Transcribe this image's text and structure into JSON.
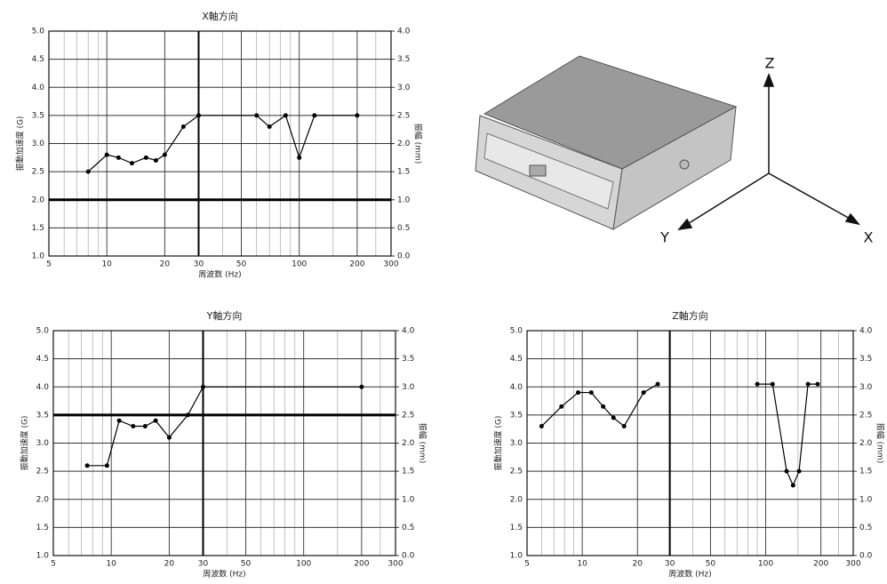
{
  "chart_data": [
    {
      "type": "line",
      "title": "X軸方向",
      "xlabel": "周波数 (Hz)",
      "ylabel": "振動加速度 (G)",
      "y2label": "振幅 (mm)",
      "xscale": "log",
      "xlim": [
        5,
        300
      ],
      "xticks": [
        5,
        10,
        20,
        30,
        50,
        100,
        200,
        300
      ],
      "xminor": [
        6,
        7,
        8,
        9,
        40,
        60,
        70,
        80,
        90,
        150,
        250
      ],
      "ylim": [
        1,
        5
      ],
      "yticks": [
        {
          "value": 1,
          "label": "1.0"
        },
        1.5,
        {
          "value": 2,
          "label": "2.0"
        },
        2.5,
        {
          "value": 3,
          "label": "3.0"
        },
        3.5,
        {
          "value": 4,
          "label": "4.0"
        },
        4.5,
        {
          "value": 5,
          "label": "5.0"
        }
      ],
      "y2lim": [
        0,
        4
      ],
      "y2ticks": [
        {
          "value": 0,
          "label": "0.0"
        },
        0.5,
        {
          "value": 1,
          "label": "1.0"
        },
        1.5,
        {
          "value": 2,
          "label": "2.0"
        },
        2.5,
        {
          "value": 3,
          "label": "3.0"
        },
        3.5,
        {
          "value": 4,
          "label": "4.0"
        }
      ],
      "grid": true,
      "ref_y": 2,
      "ref_x": 30,
      "color": "#000000",
      "series": [
        {
          "x": [
            8,
            10,
            11.5,
            13.5,
            16,
            18,
            20,
            25,
            30,
            60,
            70,
            85,
            100,
            120,
            200
          ],
          "values": [
            2.5,
            2.8,
            2.75,
            2.65,
            2.75,
            2.7,
            2.8,
            3.3,
            3.5,
            3.5,
            3.3,
            3.5,
            2.75,
            3.5,
            3.5
          ]
        }
      ]
    },
    {
      "type": "line",
      "title": "Y軸方向",
      "xlabel": "周波数 (Hz)",
      "ylabel": "振動加速度 (G)",
      "y2label": "振幅 (mm)",
      "xscale": "log",
      "xlim": [
        5,
        300
      ],
      "xticks": [
        5,
        10,
        20,
        30,
        50,
        100,
        200,
        300
      ],
      "xminor": [
        6,
        7,
        8,
        9,
        40,
        60,
        70,
        80,
        90,
        150,
        250
      ],
      "ylim": [
        1,
        5
      ],
      "yticks": [
        {
          "value": 1,
          "label": "1.0"
        },
        1.5,
        {
          "value": 2,
          "label": "2.0"
        },
        2.5,
        {
          "value": 3,
          "label": "3.0"
        },
        3.5,
        {
          "value": 4,
          "label": "4.0"
        },
        4.5,
        {
          "value": 5,
          "label": "5.0"
        }
      ],
      "y2lim": [
        0,
        4
      ],
      "y2ticks": [
        {
          "value": 0,
          "label": "0.0"
        },
        0.5,
        {
          "value": 1,
          "label": "1.0"
        },
        1.5,
        {
          "value": 2,
          "label": "2.0"
        },
        2.5,
        {
          "value": 3,
          "label": "3.0"
        },
        3.5,
        {
          "value": 4,
          "label": "4.0"
        }
      ],
      "grid": true,
      "ref_y": 3.5,
      "ref_x": 30,
      "color": "#000000",
      "series": [
        {
          "x": [
            7.5,
            9.5,
            11,
            13,
            15,
            17,
            20,
            25,
            30,
            200
          ],
          "values": [
            2.6,
            2.6,
            3.4,
            3.3,
            3.3,
            3.4,
            3.1,
            3.5,
            4,
            4
          ]
        }
      ]
    },
    {
      "type": "line",
      "title": "Z軸方向",
      "xlabel": "周波数 (Hz)",
      "ylabel": "振動加速度 (G)",
      "y2label": "振幅 (mm)",
      "xscale": "log",
      "xlim": [
        5,
        300
      ],
      "xticks": [
        5,
        10,
        20,
        30,
        50,
        100,
        200,
        300
      ],
      "xminor": [
        6,
        7,
        8,
        9,
        40,
        60,
        70,
        80,
        90,
        150,
        250
      ],
      "ylim": [
        1,
        5
      ],
      "yticks": [
        {
          "value": 1,
          "label": "1.0"
        },
        1.5,
        {
          "value": 2,
          "label": "2.0"
        },
        2.5,
        {
          "value": 3,
          "label": "3.0"
        },
        3.5,
        {
          "value": 4,
          "label": "4.0"
        },
        4.5,
        {
          "value": 5,
          "label": "5.0"
        }
      ],
      "y2lim": [
        0,
        4
      ],
      "y2ticks": [
        {
          "value": 0,
          "label": "0.0"
        },
        0.5,
        {
          "value": 1,
          "label": "1.0"
        },
        1.5,
        {
          "value": 2,
          "label": "2.0"
        },
        2.5,
        {
          "value": 3,
          "label": "3.0"
        },
        3.5,
        {
          "value": 4,
          "label": "4.0"
        }
      ],
      "grid": true,
      "ref_x": 30,
      "color": "#000000",
      "series": [
        {
          "x": [
            6,
            7.7,
            9.5,
            11.2,
            13,
            14.8,
            16.9,
            21.6,
            25.8
          ],
          "values": [
            3.3,
            3.65,
            3.9,
            3.9,
            3.65,
            3.45,
            3.3,
            3.9,
            4.05
          ]
        },
        {
          "x": [
            90,
            109,
            130,
            141,
            152,
            170,
            192
          ],
          "values": [
            4.05,
            4.05,
            2.5,
            2.25,
            2.5,
            4.05,
            4.05
          ]
        }
      ]
    }
  ],
  "diagram": {
    "z": "Z",
    "y": "Y",
    "x": "X"
  }
}
